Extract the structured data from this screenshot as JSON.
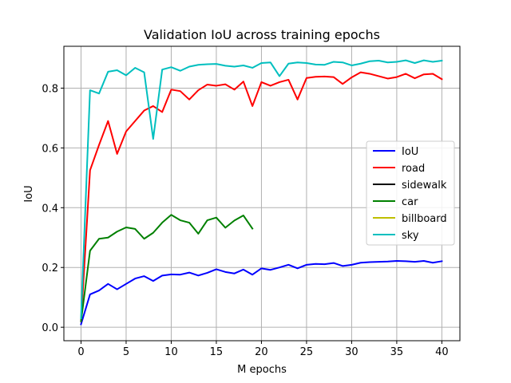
{
  "chart_data": {
    "type": "line",
    "title": "Validation IoU across training epochs",
    "xlabel": "M epochs",
    "ylabel": "IoU",
    "xlim": [
      -1.9,
      42.0
    ],
    "ylim": [
      -0.045,
      0.94
    ],
    "xticks": [
      0,
      5,
      10,
      15,
      20,
      25,
      30,
      35,
      40
    ],
    "yticks": [
      0.0,
      0.2,
      0.4,
      0.6,
      0.8
    ],
    "ytick_labels": [
      "0.0",
      "0.2",
      "0.4",
      "0.6",
      "0.8"
    ],
    "grid": true,
    "legend_position": "center-right",
    "series": [
      {
        "name": "IoU",
        "color": "#0000ff",
        "x": [
          0,
          1,
          2,
          3,
          4,
          5,
          6,
          7,
          8,
          9,
          10,
          11,
          12,
          13,
          14,
          15,
          16,
          17,
          18,
          19,
          20,
          21,
          22,
          23,
          24,
          25,
          26,
          27,
          28,
          29,
          30,
          31,
          32,
          33,
          34,
          35,
          36,
          37,
          38,
          39,
          40
        ],
        "values": [
          0.01,
          0.11,
          0.123,
          0.145,
          0.127,
          0.145,
          0.163,
          0.171,
          0.155,
          0.173,
          0.177,
          0.176,
          0.183,
          0.173,
          0.182,
          0.194,
          0.185,
          0.18,
          0.193,
          0.176,
          0.197,
          0.192,
          0.2,
          0.209,
          0.197,
          0.209,
          0.212,
          0.211,
          0.215,
          0.205,
          0.209,
          0.216,
          0.218,
          0.219,
          0.22,
          0.222,
          0.221,
          0.219,
          0.222,
          0.216,
          0.221
        ]
      },
      {
        "name": "road",
        "color": "#ff0000",
        "x": [
          0,
          1,
          2,
          3,
          4,
          5,
          6,
          7,
          8,
          9,
          10,
          11,
          12,
          13,
          14,
          15,
          16,
          17,
          18,
          19,
          20,
          21,
          22,
          23,
          24,
          25,
          26,
          27,
          28,
          29,
          30,
          31,
          32,
          33,
          34,
          35,
          36,
          37,
          38,
          39,
          40
        ],
        "values": [
          0.02,
          0.525,
          0.61,
          0.69,
          0.58,
          0.655,
          0.69,
          0.725,
          0.74,
          0.72,
          0.795,
          0.79,
          0.762,
          0.793,
          0.812,
          0.808,
          0.813,
          0.795,
          0.822,
          0.74,
          0.82,
          0.808,
          0.82,
          0.828,
          0.762,
          0.834,
          0.838,
          0.839,
          0.837,
          0.814,
          0.836,
          0.853,
          0.848,
          0.84,
          0.832,
          0.837,
          0.848,
          0.833,
          0.846,
          0.848,
          0.83
        ]
      },
      {
        "name": "sidewalk",
        "color": "#000000",
        "x": [],
        "values": []
      },
      {
        "name": "car",
        "color": "#008000",
        "x": [
          0,
          1,
          2,
          3,
          4,
          5,
          6,
          7,
          8,
          9,
          10,
          11,
          12,
          13,
          14,
          15,
          16,
          17,
          18,
          19
        ],
        "values": [
          0.02,
          0.256,
          0.296,
          0.3,
          0.32,
          0.334,
          0.329,
          0.296,
          0.316,
          0.35,
          0.376,
          0.358,
          0.35,
          0.313,
          0.358,
          0.367,
          0.333,
          0.357,
          0.374,
          0.33
        ]
      },
      {
        "name": "billboard",
        "color": "#bfbf00",
        "x": [],
        "values": []
      },
      {
        "name": "sky",
        "color": "#00bfbf",
        "x": [
          0,
          1,
          2,
          3,
          4,
          5,
          6,
          7,
          8,
          9,
          10,
          11,
          12,
          13,
          14,
          15,
          16,
          17,
          18,
          19,
          20,
          21,
          22,
          23,
          24,
          25,
          26,
          27,
          28,
          29,
          30,
          31,
          32,
          33,
          34,
          35,
          36,
          37,
          38,
          39,
          40
        ],
        "values": [
          0.03,
          0.793,
          0.782,
          0.855,
          0.86,
          0.843,
          0.868,
          0.853,
          0.63,
          0.862,
          0.87,
          0.858,
          0.872,
          0.878,
          0.88,
          0.881,
          0.875,
          0.872,
          0.876,
          0.868,
          0.884,
          0.886,
          0.84,
          0.882,
          0.886,
          0.884,
          0.879,
          0.878,
          0.888,
          0.886,
          0.876,
          0.882,
          0.89,
          0.892,
          0.886,
          0.888,
          0.893,
          0.884,
          0.893,
          0.888,
          0.892
        ]
      }
    ]
  }
}
